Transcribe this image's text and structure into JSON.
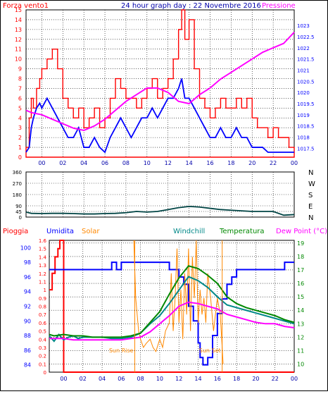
{
  "window": {
    "background": "#ffffff",
    "frame_color": "#000000"
  },
  "chart_data": [
    {
      "type": "line",
      "title": "24 hour graph day : 22 Novembre 2016",
      "left_label": "Forza vento1",
      "right_label": "Pressione",
      "colors": {
        "left": "#ff0000",
        "right": "#ff00ff",
        "avg": "#0000ff",
        "title": "#0000aa"
      },
      "xlim": [
        -1.5,
        24
      ],
      "x_ticks": [
        "00",
        "02",
        "04",
        "06",
        "08",
        "10",
        "12",
        "14",
        "16",
        "18",
        "20",
        "22",
        "00"
      ],
      "x_tick_values": [
        0,
        2,
        4,
        6,
        8,
        10,
        12,
        14,
        16,
        18,
        20,
        22,
        24
      ],
      "grid": true,
      "y_left": {
        "ylim": [
          0,
          15
        ],
        "ticks": [
          "0",
          "1",
          "2",
          "3",
          "4",
          "5",
          "6",
          "7",
          "8",
          "9",
          "10",
          "11",
          "12",
          "13",
          "14",
          "15"
        ]
      },
      "y_right": {
        "ylim": [
          1017.1,
          1023.7
        ],
        "ticks": [
          "1017.5",
          "1018",
          "1018.5",
          "1019",
          "1019.5",
          "1020",
          "1020.5",
          "1021",
          "1021.5",
          "1022",
          "1022.5",
          "1023"
        ]
      },
      "series": [
        {
          "role": "gust",
          "axis": "left",
          "color": "#ff0000",
          "x": [
            -1.5,
            -1.2,
            -1.0,
            -0.8,
            -0.5,
            -0.2,
            0.0,
            0.5,
            1.0,
            1.5,
            2.0,
            2.5,
            3.0,
            3.5,
            4.0,
            4.5,
            5.0,
            5.5,
            6.0,
            6.5,
            7.0,
            7.5,
            8.0,
            8.5,
            9.0,
            9.5,
            10.0,
            10.5,
            11.0,
            11.5,
            12.0,
            12.5,
            13.0,
            13.3,
            13.6,
            14.0,
            14.5,
            15.0,
            15.5,
            16.0,
            16.5,
            17.0,
            17.5,
            18.0,
            18.5,
            19.0,
            19.5,
            20.0,
            20.5,
            21.0,
            21.5,
            22.0,
            22.5,
            23.0,
            23.5,
            24.0
          ],
          "values": [
            1,
            4,
            6,
            5,
            7,
            8,
            9,
            10,
            11,
            9,
            6,
            5,
            4,
            5,
            3,
            4,
            5,
            3,
            4,
            6,
            8,
            7,
            6,
            6,
            5,
            6,
            7,
            8,
            6,
            7,
            8,
            10,
            13,
            15,
            12,
            14,
            9,
            6,
            5,
            4,
            5,
            6,
            5,
            5,
            6,
            5,
            6,
            4,
            3,
            3,
            2,
            3,
            2,
            2,
            1,
            1
          ]
        },
        {
          "role": "average",
          "axis": "left",
          "color": "#0000ff",
          "x": [
            -1.5,
            -1.2,
            -1.0,
            -0.8,
            -0.5,
            -0.2,
            0.0,
            0.5,
            1.0,
            1.5,
            2.0,
            2.5,
            3.0,
            3.5,
            4.0,
            4.5,
            5.0,
            5.5,
            6.0,
            6.5,
            7.0,
            7.5,
            8.0,
            8.5,
            9.0,
            9.5,
            10.0,
            10.5,
            11.0,
            11.5,
            12.0,
            12.5,
            13.0,
            13.3,
            13.6,
            14.0,
            14.5,
            15.0,
            15.5,
            16.0,
            16.5,
            17.0,
            17.5,
            18.0,
            18.5,
            19.0,
            19.5,
            20.0,
            20.5,
            21.0,
            21.5,
            22.0,
            22.5,
            23.0,
            23.5,
            24.0
          ],
          "values": [
            0.5,
            1,
            3,
            4,
            5,
            5.5,
            5,
            6,
            5,
            4,
            3,
            2,
            2,
            3,
            1,
            1,
            2,
            1,
            0.5,
            2,
            3,
            4,
            3,
            2,
            3,
            4,
            4,
            5,
            4,
            5,
            6,
            6,
            7,
            8,
            6,
            6,
            5,
            4,
            3,
            2,
            2,
            3,
            2,
            2,
            3,
            2,
            2,
            1,
            1,
            1,
            0.5,
            0.5,
            0.5,
            0.5,
            0.5,
            0.5
          ]
        },
        {
          "role": "pressure",
          "axis": "right",
          "color": "#ff00ff",
          "x": [
            -1.5,
            -1,
            0,
            1,
            2,
            3,
            4,
            5,
            6,
            7,
            8,
            9,
            10,
            11,
            12,
            13,
            14,
            15,
            16,
            17,
            18,
            19,
            20,
            21,
            22,
            23,
            24
          ],
          "values": [
            1019.2,
            1019.1,
            1019,
            1018.8,
            1018.6,
            1018.4,
            1018.3,
            1018.5,
            1018.8,
            1019.2,
            1019.6,
            1019.9,
            1020.2,
            1020.2,
            1020,
            1019.6,
            1019.5,
            1019.9,
            1020.2,
            1020.6,
            1020.9,
            1021.2,
            1021.5,
            1021.8,
            1022,
            1022.2,
            1022.7
          ]
        }
      ]
    },
    {
      "type": "line",
      "title": "",
      "right_labels": [
        "N",
        "W",
        "S",
        "E",
        "N"
      ],
      "colors": {
        "line": "#004444"
      },
      "xlim": [
        -1.5,
        24
      ],
      "grid": true,
      "y_left": {
        "ylim": [
          0,
          360
        ],
        "ticks": [
          "0",
          "45",
          "90",
          "180",
          "270",
          "360"
        ]
      },
      "series": [
        {
          "role": "wind-direction",
          "color": "#004444",
          "x": [
            -1.5,
            -1,
            0,
            1,
            2,
            3,
            4,
            5,
            6,
            7,
            8,
            9,
            10,
            11,
            12,
            13,
            14,
            15,
            16,
            17,
            18,
            19,
            20,
            21,
            22,
            23,
            24
          ],
          "values": [
            40,
            30,
            28,
            30,
            30,
            28,
            25,
            25,
            28,
            30,
            35,
            45,
            40,
            45,
            60,
            75,
            85,
            80,
            70,
            60,
            55,
            50,
            45,
            45,
            45,
            15,
            20
          ]
        }
      ]
    },
    {
      "type": "line",
      "title": "",
      "labels": {
        "rain": "Pioggia",
        "humidity": "Umidita",
        "solar": "Solar",
        "windchill": "Windchill",
        "temperature": "Temperatura",
        "dewpoint": "Dew Point (°C)",
        "sunrise": "Sun Rise",
        "sunset": "Sun Set"
      },
      "colors": {
        "rain": "#ff0000",
        "humidity": "#0000ff",
        "solar": "#ff8800",
        "windchill": "#008888",
        "temperature": "#008800",
        "dewpoint": "#ff00ff"
      },
      "xlim": [
        -1.5,
        24
      ],
      "x_ticks": [
        "00",
        "02",
        "04",
        "06",
        "08",
        "10",
        "12",
        "14",
        "16",
        "18",
        "20",
        "22",
        "00"
      ],
      "x_tick_values": [
        0,
        2,
        4,
        6,
        8,
        10,
        12,
        14,
        16,
        18,
        20,
        22,
        24
      ],
      "grid": true,
      "y_rain": {
        "ylim": [
          0,
          1.6
        ],
        "ticks": [
          "0",
          "0.1",
          "0.2",
          "0.3",
          "0.4",
          "0.5",
          "0.6",
          "0.7",
          "0.8",
          "0.9",
          "1",
          "1.1",
          "1.2",
          "1.3",
          "1.4",
          "1.5",
          "1.6"
        ]
      },
      "y_humidity": {
        "ylim": [
          83,
          101
        ],
        "ticks": [
          "84",
          "86",
          "88",
          "90",
          "92",
          "94",
          "96",
          "98",
          "100"
        ]
      },
      "y_temp": {
        "ylim": [
          9.4,
          19.2
        ],
        "ticks": [
          "10",
          "11",
          "12",
          "13",
          "14",
          "15",
          "16",
          "17",
          "18",
          "19"
        ]
      },
      "sunrise_x": 7.4,
      "sunset_x": 16.5,
      "series": [
        {
          "role": "rain",
          "color": "#ff0000",
          "x": [
            -1.5,
            -1.2,
            -1.2,
            -0.9,
            -0.9,
            -0.6,
            -0.6,
            -0.4,
            -0.4,
            0,
            0,
            24
          ],
          "values": [
            1,
            1,
            1.2,
            1.2,
            1.4,
            1.4,
            1.5,
            1.5,
            1.6,
            1.6,
            0,
            0
          ]
        },
        {
          "role": "humidity",
          "color": "#0000ff",
          "x": [
            -1.5,
            5,
            5,
            5.5,
            5.5,
            6,
            6,
            7,
            7,
            8,
            8,
            9,
            9,
            10,
            10.5,
            11,
            12,
            12.5,
            13,
            13.5,
            14,
            14.2,
            14.5,
            15,
            15.5,
            16,
            16.5,
            17,
            17.5,
            18,
            18.5,
            19,
            19.5,
            20,
            21,
            22,
            22.5,
            23,
            23,
            24
          ],
          "values": [
            97,
            97,
            98,
            98,
            97,
            97,
            98,
            98,
            98,
            98,
            98,
            98,
            98,
            98,
            98,
            97,
            96,
            95,
            92,
            90,
            87,
            85,
            84,
            85,
            88,
            91,
            93,
            95,
            96,
            97,
            97,
            97,
            97,
            97,
            97,
            97,
            97,
            98,
            98,
            98
          ]
        },
        {
          "role": "solar",
          "color": "#ff8800",
          "axis": "rain",
          "x": [
            7.3,
            7.5,
            7.8,
            8,
            8.3,
            8.6,
            9,
            9.3,
            9.6,
            10,
            10.3,
            10.6,
            11,
            11.2,
            11.4,
            11.6,
            11.8,
            12,
            12.2,
            12.4,
            12.6,
            12.8,
            13,
            13.2,
            13.4,
            13.6,
            13.8,
            14,
            14.2,
            14.4,
            14.6,
            14.8,
            15,
            15.3,
            15.6,
            16,
            16.3,
            16.6
          ],
          "values": [
            1.6,
            0.9,
            0.5,
            0.4,
            0.3,
            0.35,
            0.4,
            0.3,
            0.25,
            0.4,
            0.3,
            0.5,
            0.6,
            1.2,
            0.5,
            0.9,
            1.5,
            0.6,
            1.0,
            0.4,
            1.2,
            0.7,
            1.5,
            0.5,
            1.4,
            0.9,
            1.6,
            0.6,
            1.0,
            0.7,
            0.9,
            0.6,
            1.2,
            0.9,
            0.5,
            0.9,
            0.7,
            0.1
          ]
        },
        {
          "role": "windchill",
          "color": "#008888",
          "axis": "temp",
          "x": [
            -1.5,
            -1,
            -0.5,
            0,
            0.5,
            1,
            1.5,
            2,
            3,
            4,
            5,
            6,
            7,
            8,
            9,
            10,
            11,
            12,
            13,
            14,
            15,
            16,
            17,
            18,
            19,
            20,
            21,
            22,
            23,
            24
          ],
          "values": [
            12.1,
            11.7,
            12.2,
            11.8,
            12,
            12.1,
            11.9,
            12,
            12,
            12,
            11.9,
            11.9,
            12,
            12.3,
            13,
            13.6,
            14.5,
            15.5,
            16.5,
            16.2,
            15.7,
            15,
            14.4,
            14.2,
            14,
            13.8,
            13.6,
            13.4,
            13.2,
            13
          ]
        },
        {
          "role": "temperature",
          "color": "#008800",
          "axis": "temp",
          "x": [
            -1.5,
            -1,
            0,
            1,
            2,
            3,
            4,
            5,
            6,
            7,
            8,
            9,
            10,
            11,
            12,
            13,
            14,
            15,
            16,
            17,
            18,
            19,
            20,
            21,
            22,
            23,
            24
          ],
          "values": [
            12.2,
            12.1,
            12.2,
            12.1,
            12.1,
            12,
            12,
            12,
            12,
            12.1,
            12.3,
            13.1,
            13.9,
            15.2,
            16.4,
            17.3,
            17.1,
            16.6,
            16,
            15,
            14.5,
            14.2,
            14,
            13.8,
            13.6,
            13.3,
            13.1
          ]
        },
        {
          "role": "dewpoint",
          "color": "#ff00ff",
          "axis": "temp",
          "x": [
            -1.5,
            -1,
            0,
            1,
            2,
            3,
            4,
            5,
            6,
            7,
            8,
            9,
            10,
            11,
            12,
            13,
            14,
            15,
            16,
            17,
            18,
            19,
            20,
            21,
            22,
            23,
            24
          ],
          "values": [
            11.9,
            11.9,
            11.9,
            11.8,
            11.8,
            11.8,
            11.8,
            11.8,
            11.8,
            11.9,
            12,
            12.4,
            13,
            13.6,
            14.3,
            14.6,
            14.5,
            14.3,
            14.1,
            13.7,
            13.5,
            13.3,
            13.1,
            13,
            13,
            12.8,
            12.7
          ]
        }
      ]
    }
  ]
}
